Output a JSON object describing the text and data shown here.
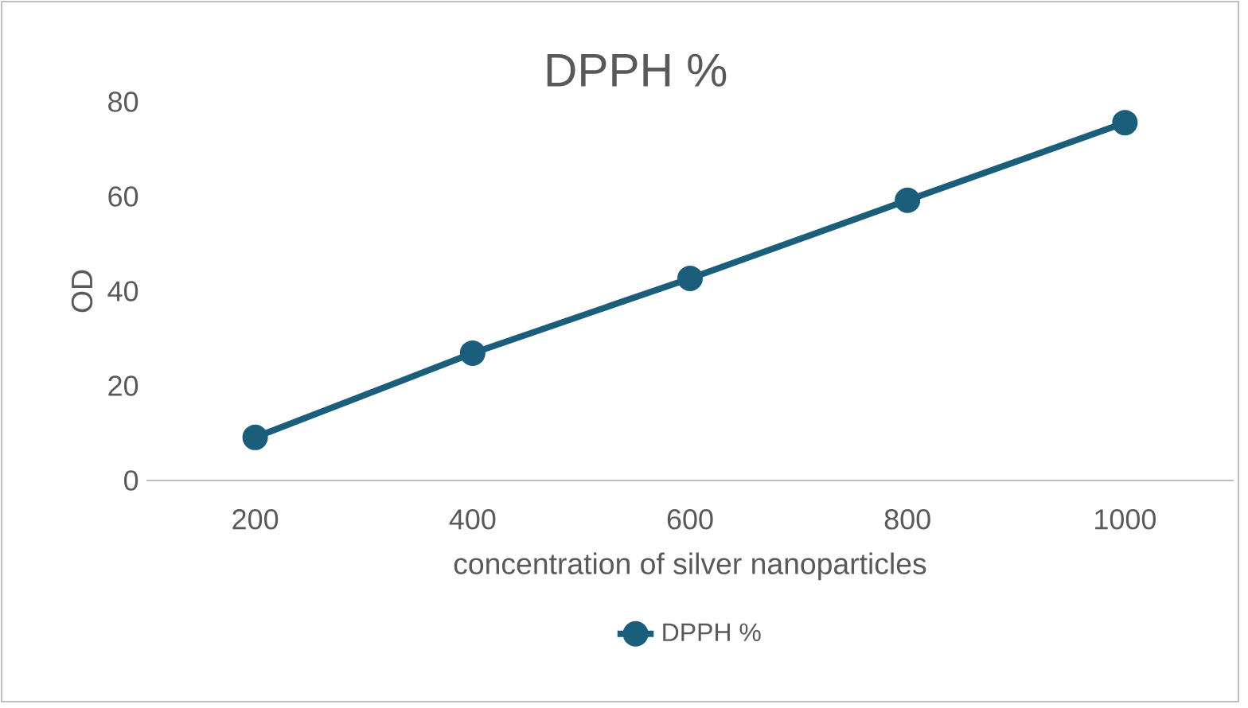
{
  "chart_data": {
    "type": "line",
    "title": "DPPH %",
    "xlabel": "concentration of silver nanoparticles",
    "ylabel": "OD",
    "categories": [
      "200",
      "400",
      "600",
      "800",
      "1000"
    ],
    "series": [
      {
        "name": "DPPH %",
        "color": "#1b5e7b",
        "values": [
          9.1,
          26.9,
          42.7,
          59.2,
          75.6
        ]
      }
    ],
    "ylim": [
      0,
      80
    ],
    "yticks": [
      0,
      20,
      40,
      60,
      80
    ],
    "legend": "bottom",
    "marker": "circle",
    "line_style": "solid"
  }
}
